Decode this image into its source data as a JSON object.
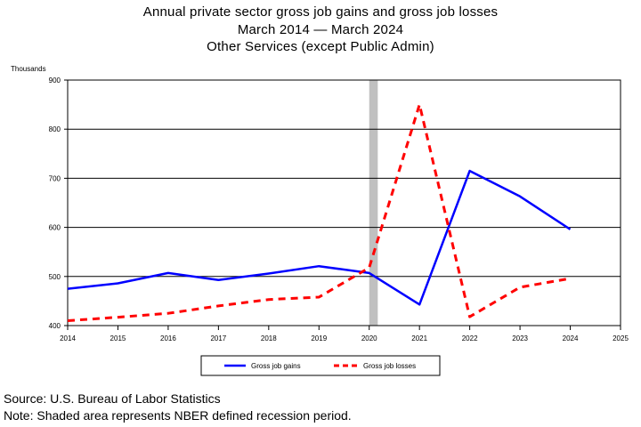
{
  "chart_data": {
    "type": "line",
    "title": "Annual private sector gross job gains and gross job losses",
    "subtitle": "March 2014 — March 2024",
    "subtitle2": "Other Services (except Public Admin)",
    "ylabel": "Thousands",
    "xlabel": "",
    "xlim": [
      2014,
      2025
    ],
    "ylim": [
      400,
      900
    ],
    "xticks": [
      "2014",
      "2015",
      "2016",
      "2017",
      "2018",
      "2019",
      "2020",
      "2021",
      "2022",
      "2023",
      "2024",
      "2025"
    ],
    "yticks": [
      "400",
      "500",
      "600",
      "700",
      "800",
      "900"
    ],
    "grid": "horizontal",
    "legend_position": "bottom",
    "recession_shading": [
      2020.0,
      2020.17
    ],
    "series": [
      {
        "name": "Gross job gains",
        "color": "#0000ff",
        "style": "solid",
        "x": [
          2014,
          2015,
          2016,
          2017,
          2018,
          2019,
          2020,
          2021,
          2022,
          2023,
          2024
        ],
        "values": [
          475,
          486,
          507,
          493,
          506,
          521,
          507,
          443,
          715,
          663,
          596
        ]
      },
      {
        "name": "Gross job losses",
        "color": "#ff0000",
        "style": "dashed",
        "x": [
          2014,
          2015,
          2016,
          2017,
          2018,
          2019,
          2020,
          2021,
          2022,
          2023,
          2024
        ],
        "values": [
          410,
          417,
          425,
          440,
          453,
          458,
          518,
          850,
          418,
          478,
          496
        ]
      }
    ]
  },
  "footer": {
    "source": "Source: U.S. Bureau of Labor Statistics",
    "note": "Note: Shaded area represents NBER defined recession period."
  }
}
